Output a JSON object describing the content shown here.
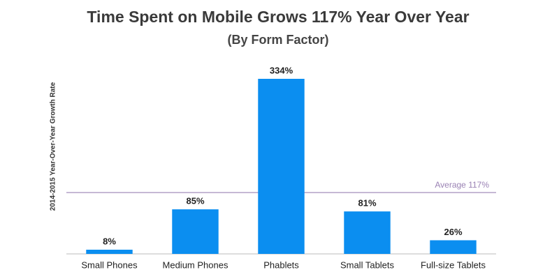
{
  "chart_data": {
    "type": "bar",
    "title": "Time Spent on Mobile Grows 117% Year Over Year",
    "subtitle": "(By Form Factor)",
    "y_label": "2014-2015 Year-Over-Year Growth Rate",
    "categories": [
      "Small Phones",
      "Medium Phones",
      "Phablets",
      "Small Tablets",
      "Full-size Tablets"
    ],
    "values": [
      8,
      85,
      334,
      81,
      26
    ],
    "value_labels": [
      "8%",
      "85%",
      "334%",
      "81%",
      "26%"
    ],
    "color": "#0b8ef0",
    "ylim": [
      0,
      334
    ],
    "reference_line": {
      "value": 117,
      "label": "Average 117%",
      "color": "#9a82b4"
    }
  }
}
